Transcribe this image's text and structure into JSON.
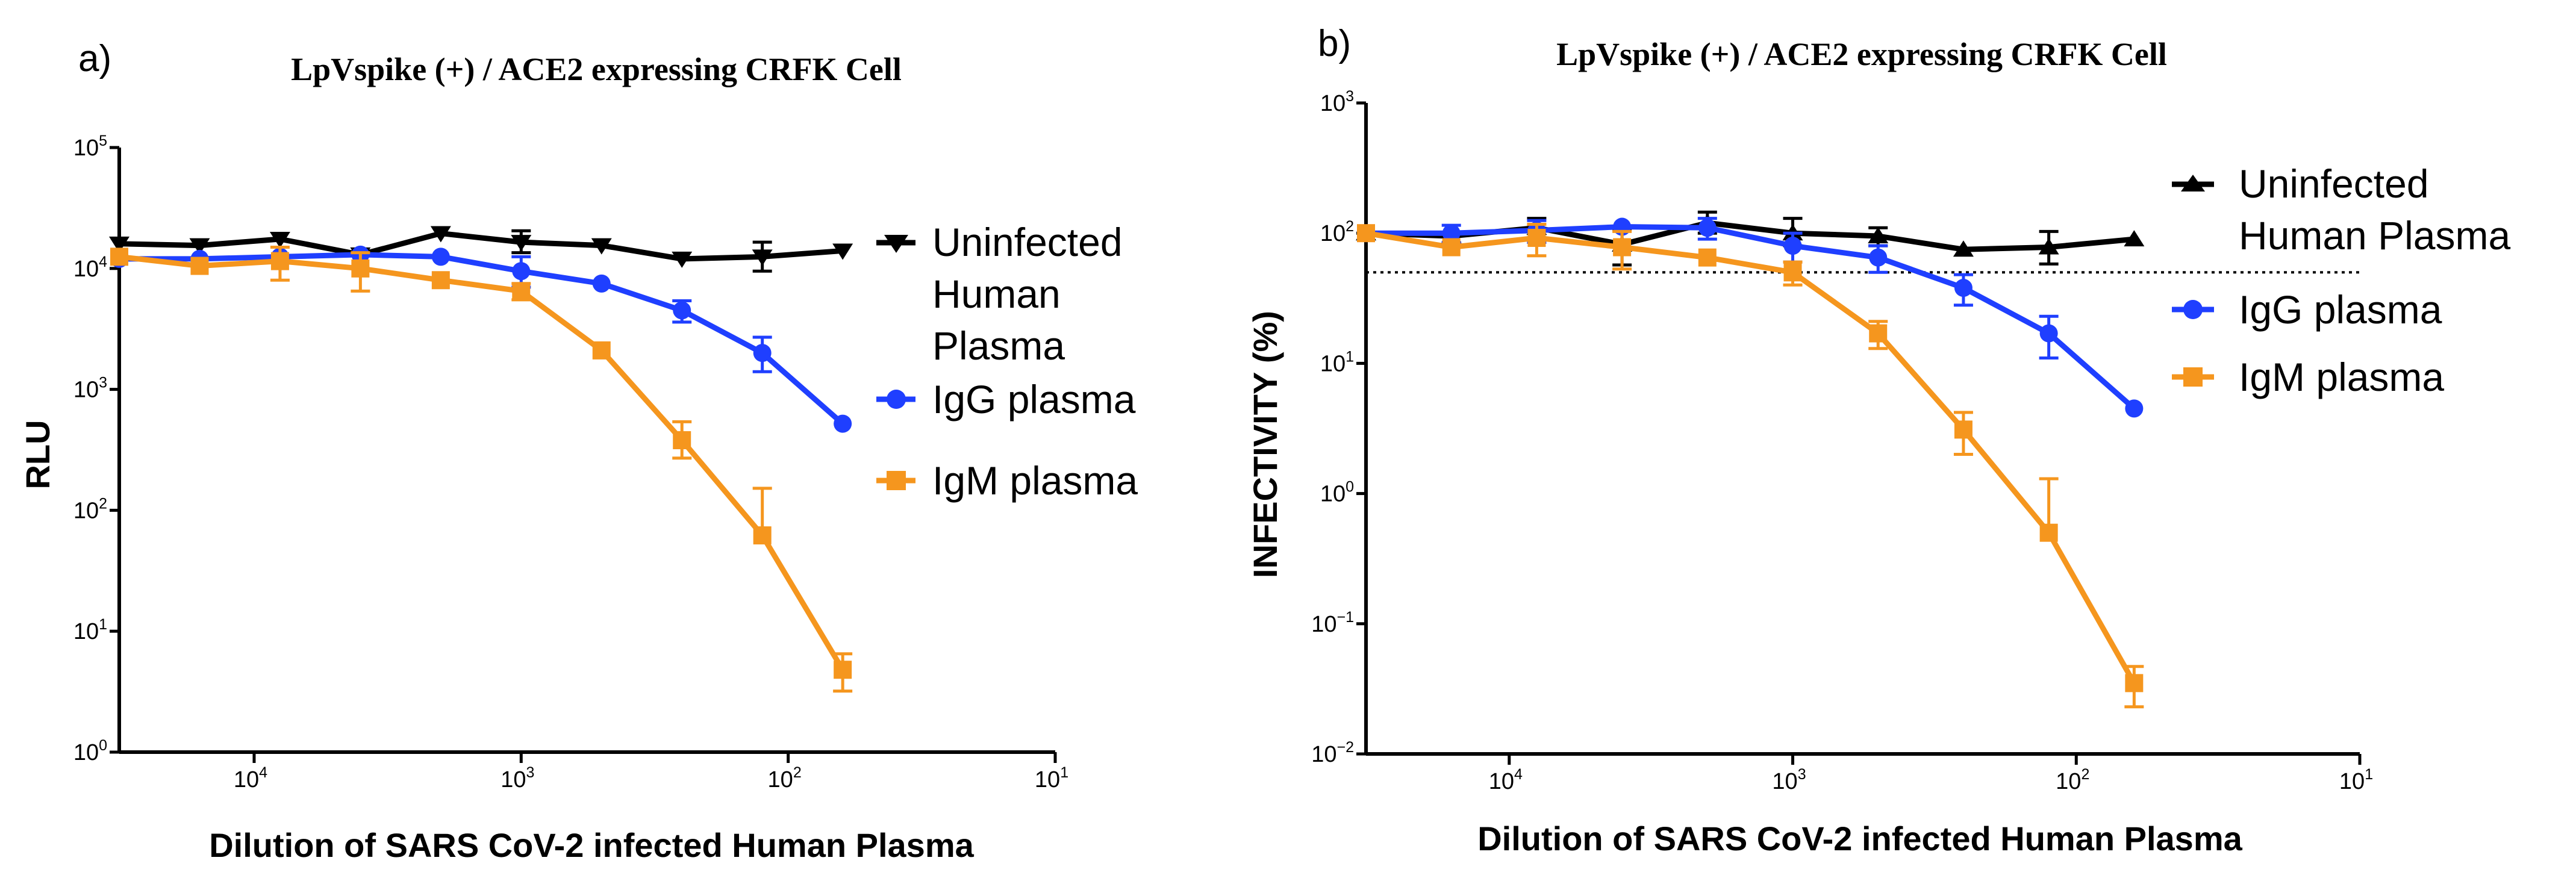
{
  "chart_data": [
    {
      "panel_label": "a)",
      "type": "line",
      "title": "LpVspike (+)  / ACE2 expressing CRFK Cell",
      "xlabel": "Dilution of SARS CoV-2 infected Human Plasma",
      "ylabel": "RLU",
      "x_scale": "log",
      "x_reversed": true,
      "y_scale": "log",
      "xlim": [
        32000,
        10
      ],
      "ylim": [
        1,
        100000
      ],
      "x_ticks": [
        {
          "value": 10000,
          "base": "10",
          "exp": "4"
        },
        {
          "value": 1000,
          "base": "10",
          "exp": "3"
        },
        {
          "value": 100,
          "base": "10",
          "exp": "2"
        },
        {
          "value": 10,
          "base": "10",
          "exp": "1"
        }
      ],
      "y_ticks": [
        {
          "value": 1,
          "base": "10",
          "exp": "0"
        },
        {
          "value": 10,
          "base": "10",
          "exp": "1"
        },
        {
          "value": 100,
          "base": "10",
          "exp": "2"
        },
        {
          "value": 1000,
          "base": "10",
          "exp": "3"
        },
        {
          "value": 10000,
          "base": "10",
          "exp": "4"
        },
        {
          "value": 100000,
          "base": "10",
          "exp": "5"
        }
      ],
      "x": [
        32000,
        16000,
        8000,
        4000,
        2000,
        1000,
        500,
        250,
        125,
        62.5
      ],
      "series": [
        {
          "name": "Uninfected Human Plasma",
          "color": "#000000",
          "marker": "triangle-down",
          "values": [
            16000,
            15500,
            17500,
            13000,
            19500,
            16500,
            15500,
            12000,
            12500,
            14000
          ],
          "err_low": [
            null,
            null,
            null,
            null,
            null,
            3000,
            null,
            null,
            3000,
            null
          ],
          "err_high": [
            null,
            null,
            null,
            null,
            null,
            4000,
            null,
            null,
            4000,
            null
          ]
        },
        {
          "name": "IgG plasma",
          "color": "#1f3fff",
          "marker": "circle",
          "values": [
            12000,
            12000,
            12500,
            13000,
            12500,
            9500,
            7500,
            4500,
            2000,
            520
          ],
          "err_low": [
            null,
            null,
            null,
            null,
            null,
            2500,
            null,
            900,
            600,
            null
          ],
          "err_high": [
            null,
            null,
            null,
            null,
            null,
            3000,
            null,
            900,
            700,
            null
          ]
        },
        {
          "name": "IgM plasma",
          "color": "#f5961e",
          "marker": "square",
          "values": [
            12500,
            10500,
            11500,
            10000,
            8000,
            6500,
            2100,
            380,
            62,
            4.8
          ],
          "err_low": [
            null,
            null,
            3500,
            3500,
            null,
            1000,
            null,
            110,
            null,
            1.6
          ],
          "err_high": [
            null,
            null,
            3500,
            3500,
            null,
            1000,
            null,
            160,
            90,
            1.7
          ]
        }
      ]
    },
    {
      "panel_label": "b)",
      "type": "line",
      "title": "LpVspike (+)  / ACE2 expressing CRFK Cell",
      "xlabel": "Dilution of SARS CoV-2 infected Human Plasma",
      "ylabel": "INFECTIVITY (%)",
      "x_scale": "log",
      "x_reversed": true,
      "y_scale": "log",
      "xlim": [
        32000,
        10
      ],
      "ylim": [
        0.01,
        1000
      ],
      "reference_line": 50,
      "x_ticks": [
        {
          "value": 10000,
          "base": "10",
          "exp": "4"
        },
        {
          "value": 1000,
          "base": "10",
          "exp": "3"
        },
        {
          "value": 100,
          "base": "10",
          "exp": "2"
        },
        {
          "value": 10,
          "base": "10",
          "exp": "1"
        }
      ],
      "y_ticks": [
        {
          "value": 0.01,
          "base": "10",
          "exp": "−2"
        },
        {
          "value": 0.1,
          "base": "10",
          "exp": "−1"
        },
        {
          "value": 1,
          "base": "10",
          "exp": "0"
        },
        {
          "value": 10,
          "base": "10",
          "exp": "1"
        },
        {
          "value": 100,
          "base": "10",
          "exp": "2"
        },
        {
          "value": 1000,
          "base": "10",
          "exp": "3"
        }
      ],
      "x": [
        32000,
        16000,
        8000,
        4000,
        2000,
        1000,
        500,
        250,
        125,
        62.5
      ],
      "series": [
        {
          "name": "Uninfected Human Plasma",
          "color": "#000000",
          "marker": "triangle-up",
          "values": [
            100,
            95,
            110,
            82,
            120,
            100,
            95,
            75,
            78,
            90
          ],
          "err_low": [
            null,
            null,
            20,
            25,
            20,
            20,
            15,
            null,
            20,
            null
          ],
          "err_high": [
            null,
            null,
            20,
            25,
            25,
            30,
            15,
            null,
            25,
            null
          ]
        },
        {
          "name": "IgG plasma",
          "color": "#1f3fff",
          "marker": "circle",
          "values": [
            100,
            100,
            105,
            112,
            110,
            80,
            65,
            38,
            17,
            4.5
          ],
          "err_low": [
            null,
            15,
            20,
            null,
            20,
            20,
            15,
            10,
            6,
            null
          ],
          "err_high": [
            null,
            15,
            20,
            null,
            20,
            20,
            15,
            10,
            6,
            null
          ]
        },
        {
          "name": "IgM plasma",
          "color": "#f5961e",
          "marker": "square",
          "values": [
            100,
            78,
            92,
            78,
            65,
            50,
            17,
            3.1,
            0.5,
            0.035
          ],
          "err_low": [
            null,
            null,
            25,
            25,
            null,
            10,
            4,
            1.1,
            null,
            0.012
          ],
          "err_high": [
            null,
            null,
            25,
            25,
            null,
            10,
            4,
            1.1,
            0.8,
            0.012
          ]
        }
      ]
    }
  ]
}
